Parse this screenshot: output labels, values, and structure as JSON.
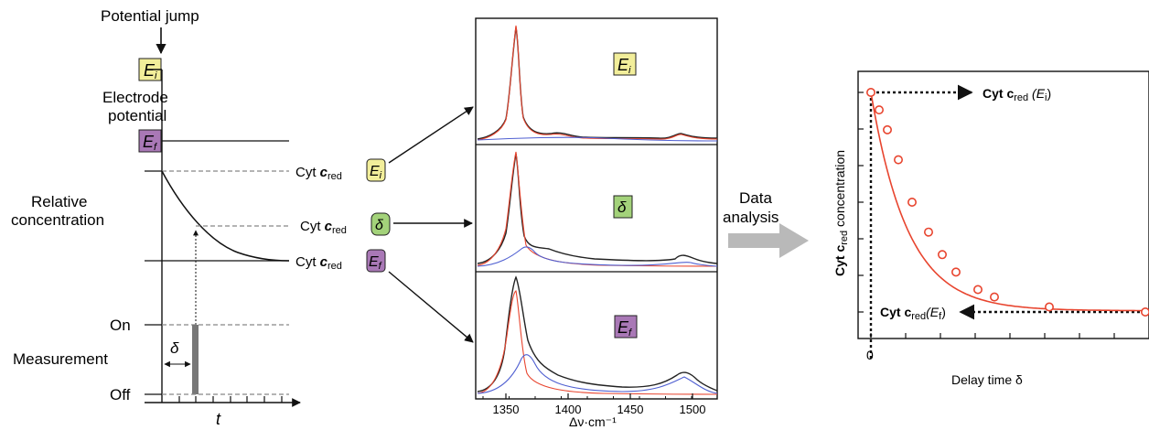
{
  "left_panel": {
    "potential_jump": "Potential jump",
    "ei": "E",
    "ei_sub": "i",
    "ef": "E",
    "ef_sub": "f",
    "electrode": "Electrode",
    "potential": "potential",
    "relative": "Relative",
    "concentration": "concentration",
    "on": "On",
    "off": "Off",
    "measurement": "Measurement",
    "delta": "δ",
    "t_axis": "t"
  },
  "labels": {
    "cyt": "Cyt",
    "c": "c",
    "red": "red",
    "ei": "E",
    "ei_sub": "i",
    "delta": "δ",
    "ef": "E",
    "ef_sub": "f"
  },
  "spectra": {
    "xlabel": "Δν·cm⁻¹",
    "ticks": [
      "1350",
      "1400",
      "1450",
      "1500"
    ],
    "tag_top": "E",
    "tag_top_sub": "i",
    "tag_mid": "δ",
    "tag_bot": "E",
    "tag_bot_sub": "f"
  },
  "analysis": {
    "line1": "Data",
    "line2": "analysis"
  },
  "colors": {
    "yellow_tag": "#f2ee9a",
    "green_tag": "#a3d27a",
    "purple_tag": "#a978b6",
    "spectrum_black": "#222222",
    "spectrum_red": "#e8452f",
    "spectrum_blue": "#4f5fd1",
    "decay_red": "#e8452f",
    "arrow_gray": "#b9b9b9"
  },
  "decay_chart": {
    "ylabel": "Cyt c",
    "ylabel_sub": "red",
    "ylabel_tail": "concentration",
    "xlabel": "Delay time δ",
    "x_tick_label": "0",
    "top_label": "Cyt c",
    "top_label_sub": "red",
    "top_label_tail": "(E",
    "top_label_tail_sub": "i",
    "top_label_close": ")",
    "bottom_label": "Cyt c",
    "bottom_label_sub": "red",
    "bottom_label_tail": "(E",
    "bottom_label_tail_sub": "f",
    "bottom_label_close": ")"
  },
  "chart_data": {
    "type": "scatter",
    "title": "",
    "xlabel": "Delay time δ",
    "ylabel": "Cyt c red concentration",
    "x": [
      0,
      0.3,
      0.6,
      1.0,
      1.5,
      2.1,
      2.6,
      3.1,
      3.9,
      4.5,
      6.5,
      10.0
    ],
    "y": [
      1.0,
      0.93,
      0.85,
      0.73,
      0.56,
      0.44,
      0.35,
      0.28,
      0.21,
      0.18,
      0.14,
      0.12
    ],
    "fit": "exponential decay",
    "xlim": [
      0,
      10.0
    ],
    "ylim": [
      0,
      1.0
    ]
  }
}
